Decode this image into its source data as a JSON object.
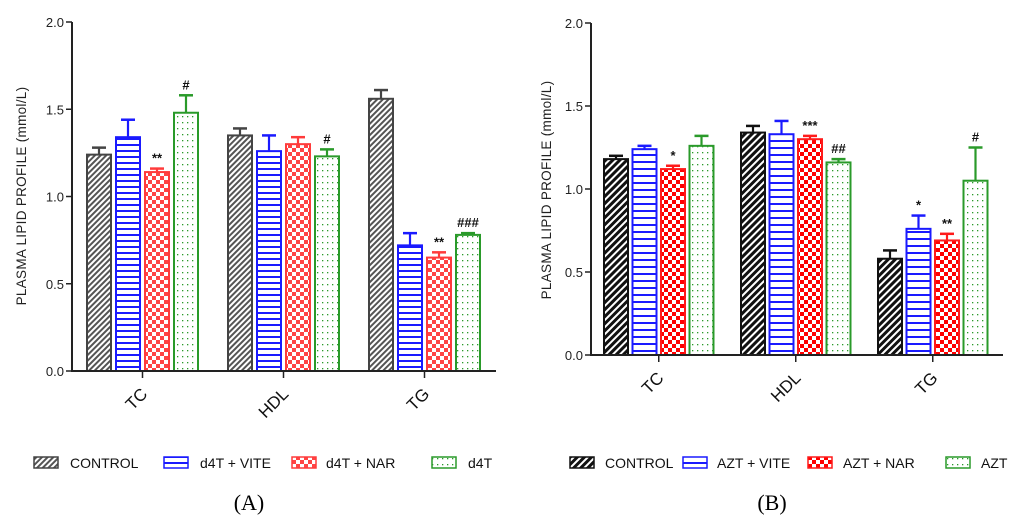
{
  "chart_data": [
    {
      "type": "bar",
      "panel_label": "(A)",
      "ylabel": "PLASMA LIPID PROFILE (mmol/L)",
      "xlabel": "",
      "ylim": [
        0,
        2.0
      ],
      "yticks": [
        "0.0",
        "0.5",
        "1.0",
        "1.5",
        "2.0"
      ],
      "ytick_values": [
        0,
        0.5,
        1.0,
        1.5,
        2.0
      ],
      "categories": [
        "TC",
        "HDL",
        "TG"
      ],
      "grid": false,
      "legend_position": "bottom",
      "series": [
        {
          "name": "CONTROL",
          "pattern": "diagonal-hatch",
          "color": "#444444",
          "values": [
            1.24,
            1.35,
            1.56
          ],
          "errors": [
            0.04,
            0.04,
            0.05
          ],
          "annotations": [
            "",
            "",
            ""
          ]
        },
        {
          "name": "d4T  + VITE",
          "pattern": "horizontal-lines",
          "color": "#1a1aff",
          "values": [
            1.34,
            1.26,
            0.72
          ],
          "errors": [
            0.1,
            0.09,
            0.07
          ],
          "annotations": [
            "",
            "",
            ""
          ]
        },
        {
          "name": "d4T  + NAR",
          "pattern": "checker",
          "color": "#ff3b3b",
          "values": [
            1.14,
            1.3,
            0.65
          ],
          "errors": [
            0.02,
            0.04,
            0.03
          ],
          "annotations": [
            "**",
            "",
            "**"
          ]
        },
        {
          "name": "d4T",
          "pattern": "dots",
          "color": "#2a9a2a",
          "values": [
            1.48,
            1.23,
            0.78
          ],
          "errors": [
            0.1,
            0.04,
            0.01
          ],
          "annotations": [
            "#",
            "#",
            "###"
          ]
        }
      ]
    },
    {
      "type": "bar",
      "panel_label": "(B)",
      "ylabel": "PLASMA LIPID PROFILE (mmol/L)",
      "xlabel": "",
      "ylim": [
        0,
        2.0
      ],
      "yticks": [
        "0.0",
        "0.5",
        "1.0",
        "1.5",
        "2.0"
      ],
      "ytick_values": [
        0,
        0.5,
        1.0,
        1.5,
        2.0
      ],
      "categories": [
        "TC",
        "HDL",
        "TG"
      ],
      "grid": false,
      "legend_position": "bottom",
      "series": [
        {
          "name": "CONTROL",
          "pattern": "diagonal-hatch-dense",
          "color": "#111111",
          "values": [
            1.18,
            1.34,
            0.58
          ],
          "errors": [
            0.02,
            0.04,
            0.05
          ],
          "annotations": [
            "",
            "",
            ""
          ]
        },
        {
          "name": "AZT + VITE",
          "pattern": "horizontal-lines",
          "color": "#1a1aff",
          "values": [
            1.24,
            1.33,
            0.76
          ],
          "errors": [
            0.02,
            0.08,
            0.08
          ],
          "annotations": [
            "",
            "",
            "*"
          ]
        },
        {
          "name": "AZT + NAR",
          "pattern": "checker",
          "color": "#ff1a1a",
          "values": [
            1.12,
            1.3,
            0.69
          ],
          "errors": [
            0.02,
            0.02,
            0.04
          ],
          "annotations": [
            "*",
            "***",
            "**"
          ]
        },
        {
          "name": "AZT",
          "pattern": "dots",
          "color": "#2a9a2a",
          "values": [
            1.26,
            1.16,
            1.05
          ],
          "errors": [
            0.06,
            0.02,
            0.2
          ],
          "annotations": [
            "",
            "##",
            "#"
          ]
        }
      ]
    }
  ]
}
